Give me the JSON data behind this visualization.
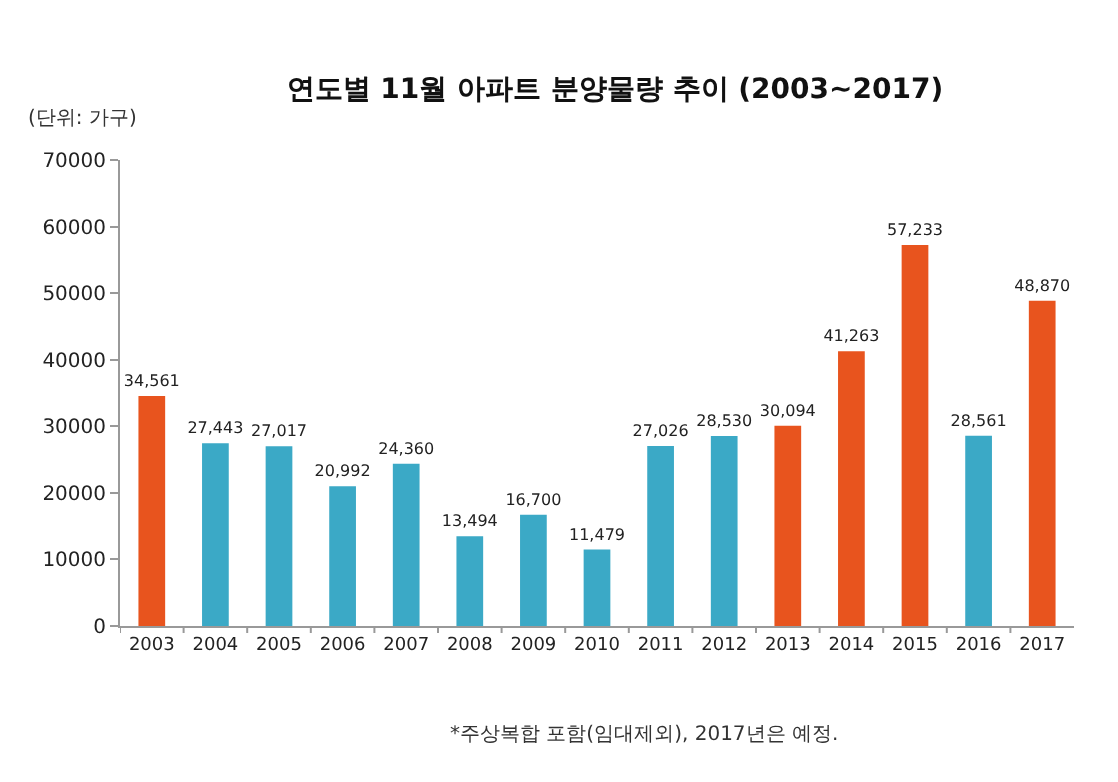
{
  "chart_data": {
    "type": "bar",
    "title": "연도별 11월 아파트 분양물량 추이 (2003~2017)",
    "ylabel": "(단위: 가구)",
    "annotations": [
      "*주상복합 포함(임대제외), 2017년은 예정."
    ],
    "categories": [
      "2003",
      "2004",
      "2005",
      "2006",
      "2007",
      "2008",
      "2009",
      "2010",
      "2011",
      "2012",
      "2013",
      "2014",
      "2015",
      "2016",
      "2017"
    ],
    "values": [
      34561,
      27443,
      27017,
      20992,
      24360,
      13494,
      16700,
      11479,
      27026,
      28530,
      30094,
      41263,
      57233,
      28561,
      48870
    ],
    "colors": [
      "#e8541e",
      "#3ba9c6",
      "#3ba9c6",
      "#3ba9c6",
      "#3ba9c6",
      "#3ba9c6",
      "#3ba9c6",
      "#3ba9c6",
      "#3ba9c6",
      "#3ba9c6",
      "#e8541e",
      "#e8541e",
      "#e8541e",
      "#3ba9c6",
      "#e8541e"
    ],
    "value_labels": [
      "34,561",
      "27,443",
      "27,017",
      "20,992",
      "24,360",
      "13,494",
      "16,700",
      "11,479",
      "27,026",
      "28,530",
      "30,094",
      "41,263",
      "57,233",
      "28,561",
      "48,870"
    ],
    "ylim": [
      0,
      70000
    ],
    "yticks": [
      0,
      10000,
      20000,
      30000,
      40000,
      50000,
      60000,
      70000
    ],
    "grid": false
  }
}
